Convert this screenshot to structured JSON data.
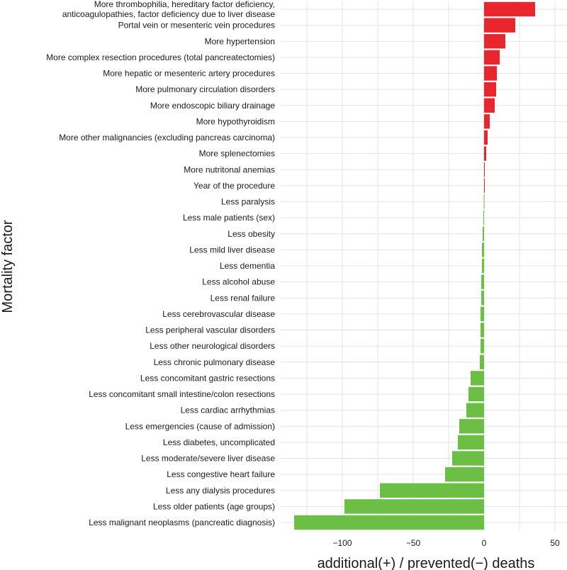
{
  "chart_data": {
    "type": "bar",
    "orientation": "horizontal",
    "title": "",
    "xlabel": "additional(+) / prevented(−) deaths",
    "ylabel": "Mortality factor",
    "xlim": [
      -135,
      60
    ],
    "xticks": [
      -100,
      -50,
      0,
      50
    ],
    "xtick_labels": [
      "−100",
      "−50",
      "0",
      "50"
    ],
    "grid": true,
    "legend": "none",
    "colors": {
      "positive": "#e8262b",
      "negative": "#6bbf45",
      "grid": "#e3e3e3"
    },
    "categories": [
      [
        "More thrombophilia, hereditary factor deficiency,",
        "anticoagulopathies, factor deficiency due to liver disease"
      ],
      [
        "Portal vein or mesenteric vein procedures"
      ],
      [
        "More hypertension"
      ],
      [
        "More complex resection procedures (total pancreatectomies)"
      ],
      [
        "More hepatic or mesenteric artery procedures"
      ],
      [
        "More pulmonary circulation disorders"
      ],
      [
        "More endoscopic biliary drainage"
      ],
      [
        "More hypothyroidism"
      ],
      [
        "More other malignancies (excluding pancreas carcinoma)"
      ],
      [
        "More splenectomies"
      ],
      [
        "More nutritonal anemias"
      ],
      [
        "Year of the procedure"
      ],
      [
        "Less paralysis"
      ],
      [
        "Less male patients (sex)"
      ],
      [
        "Less obesity"
      ],
      [
        "Less mild liver disease"
      ],
      [
        "Less dementia"
      ],
      [
        "Less alcohol abuse"
      ],
      [
        "Less renal failure"
      ],
      [
        "Less cerebrovascular disease"
      ],
      [
        "Less peripheral vascular disorders"
      ],
      [
        "Less other neurological disorders"
      ],
      [
        "Less chronic pulmonary disease"
      ],
      [
        "Less concomitant gastric resections"
      ],
      [
        "Less concomitant small intestine/colon resections"
      ],
      [
        "Less cardiac arrhythmias"
      ],
      [
        "Less emergencies (cause of admission)"
      ],
      [
        "Less diabetes, uncomplicated"
      ],
      [
        "Less moderate/severe liver disease"
      ],
      [
        "Less congestive heart failure"
      ],
      [
        "Less any dialysis procedures"
      ],
      [
        "Less older patients (age groups)"
      ],
      [
        "Less malignant neoplasms (pancreatic diagnosis)"
      ]
    ],
    "values": [
      36,
      22,
      15,
      11,
      9,
      8.5,
      7.5,
      4,
      2.5,
      1.5,
      0.5,
      0.2,
      -0.2,
      -0.5,
      -1,
      -1.5,
      -1.5,
      -2,
      -2,
      -2.5,
      -2.5,
      -2.5,
      -3,
      -9.5,
      -11,
      -12.5,
      -17.5,
      -18.5,
      -22.5,
      -27.5,
      -73.5,
      -98.5,
      -134
    ]
  }
}
